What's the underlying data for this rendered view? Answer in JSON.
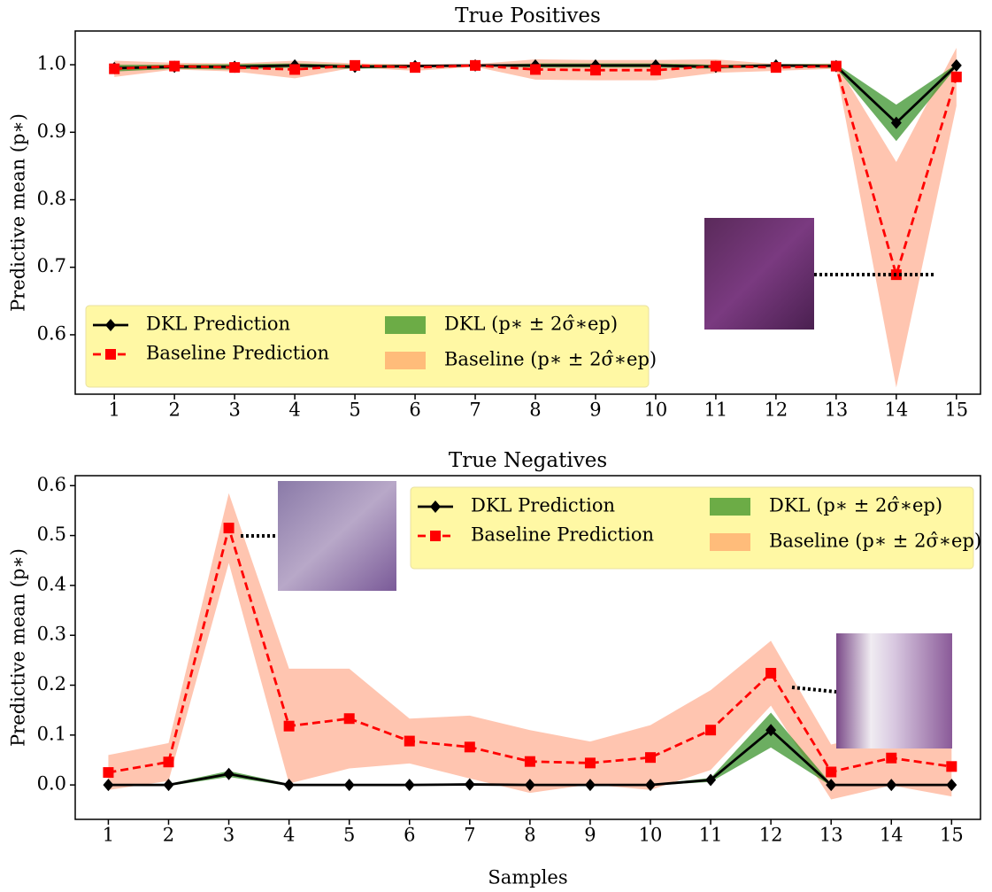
{
  "chart_data": [
    {
      "type": "line",
      "title": "True Positives",
      "ylabel": "Predictive mean (p∗)",
      "x": [
        1,
        2,
        3,
        4,
        5,
        6,
        7,
        8,
        9,
        10,
        11,
        12,
        13,
        14,
        15
      ],
      "xlim": [
        0.35,
        15.4
      ],
      "xticks": [
        1,
        2,
        3,
        4,
        5,
        6,
        7,
        8,
        9,
        10,
        11,
        12,
        13,
        14,
        15
      ],
      "ylim": [
        0.512,
        1.05
      ],
      "yticks": [
        0.6,
        0.7,
        0.8,
        0.9,
        {
          "value": 1,
          "label": "1.0"
        }
      ],
      "legend": "lower left",
      "series": [
        {
          "name": "DKL Prediction",
          "color": "#000000",
          "marker": "diamond",
          "band_name": "DKL (p∗ ± 2σ̂∗ep)",
          "band_color": "#2e8b1e",
          "values": [
            0.995,
            0.997,
            0.997,
            0.999,
            0.997,
            0.998,
            0.999,
            0.999,
            0.999,
            0.999,
            0.997,
            0.999,
            0.998,
            0.914,
            0.999
          ],
          "errors": [
            0.005,
            0.003,
            0.004,
            0.003,
            0.003,
            0.002,
            0.001,
            0.003,
            0.003,
            0.003,
            0.003,
            0.002,
            0.003,
            0.027,
            0.002
          ]
        },
        {
          "name": "Baseline Prediction",
          "color": "#ff0000",
          "marker": "square",
          "dashed": true,
          "band_name": "Baseline (p∗ ± 2σ̂∗ep)",
          "band_color": "#ff7f50",
          "values": [
            0.994,
            0.998,
            0.996,
            0.993,
            0.999,
            0.996,
            0.999,
            0.993,
            0.992,
            0.992,
            0.998,
            0.996,
            0.998,
            0.689,
            0.982
          ],
          "errors": [
            0.012,
            0.005,
            0.006,
            0.013,
            0.003,
            0.005,
            0.002,
            0.015,
            0.015,
            0.015,
            0.01,
            0.005,
            0.004,
            0.167,
            0.043
          ]
        }
      ]
    },
    {
      "type": "line",
      "title": "True Negatives",
      "ylabel": "Predictive mean (p∗)",
      "xlabel": "Samples",
      "x": [
        1,
        2,
        3,
        4,
        5,
        6,
        7,
        8,
        9,
        10,
        11,
        12,
        13,
        14,
        15
      ],
      "xlim": [
        0.45,
        15.48
      ],
      "xticks": [
        1,
        2,
        3,
        4,
        5,
        6,
        7,
        8,
        9,
        10,
        11,
        12,
        13,
        14,
        15
      ],
      "ylim": [
        -0.069,
        0.62
      ],
      "yticks": [
        {
          "value": 0,
          "label": "0.0"
        },
        0.1,
        0.2,
        0.3,
        0.4,
        0.5,
        0.6
      ],
      "legend": "upper right",
      "series": [
        {
          "name": "DKL Prediction",
          "color": "#000000",
          "marker": "diamond",
          "band_name": "DKL (p∗ ± 2σ̂∗ep)",
          "band_color": "#2e8b1e",
          "values": [
            0,
            0,
            0.022,
            0,
            0,
            0,
            0.001,
            0,
            0,
            0,
            0.01,
            0.11,
            0,
            0,
            0
          ],
          "errors": [
            0.002,
            0.002,
            0.006,
            0.002,
            0.001,
            0.001,
            0.001,
            0.001,
            0.001,
            0.001,
            0.004,
            0.035,
            0.002,
            0.001,
            0.001
          ]
        },
        {
          "name": "Baseline Prediction",
          "color": "#ff0000",
          "marker": "square",
          "dashed": true,
          "band_name": "Baseline (p∗ ± 2σ̂∗ep)",
          "band_color": "#ff7f50",
          "values": [
            0.025,
            0.046,
            0.515,
            0.118,
            0.133,
            0.088,
            0.076,
            0.047,
            0.044,
            0.055,
            0.11,
            0.224,
            0.026,
            0.054,
            0.037
          ],
          "errors": [
            0.035,
            0.038,
            0.07,
            0.115,
            0.1,
            0.045,
            0.063,
            0.063,
            0.043,
            0.065,
            0.08,
            0.065,
            0.055,
            0.055,
            0.06
          ]
        }
      ]
    }
  ]
}
